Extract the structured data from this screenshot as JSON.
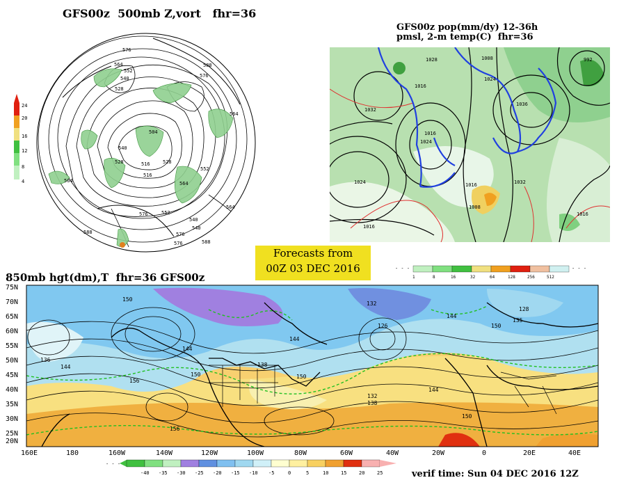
{
  "panels": {
    "z500": {
      "title": "GFS00z  500mb Z,vort   fhr=36",
      "contour_labels": [
        "576",
        "588",
        "564",
        "552",
        "540",
        "528",
        "576",
        "564",
        "504",
        "516",
        "528",
        "540",
        "552",
        "564",
        "576",
        "588",
        "576",
        "552",
        "540",
        "528",
        "564",
        "516",
        "540",
        "564",
        "576",
        "588"
      ],
      "legend": {
        "labels": [
          "24",
          "20",
          "16",
          "12",
          "8",
          "4"
        ],
        "colors": [
          "#e02010",
          "#f0a020",
          "#f0e080",
          "#40c040",
          "#80e080",
          "#c0f0c0"
        ]
      }
    },
    "precip": {
      "title_line1": "GFS00z pop(mm/dy) 12-36h",
      "title_line2": "pmsl, 2-m temp(C)  fhr=36",
      "isobar_labels": [
        "1032",
        "1016",
        "1024",
        "1008",
        "1016",
        "1024",
        "1028",
        "1008",
        "1016",
        "1016",
        "1024",
        "1036",
        "992",
        "1016",
        "1032"
      ],
      "legend": {
        "labels": [
          "1",
          "8",
          "16",
          "32",
          "64",
          "128",
          "256",
          "512"
        ],
        "colors": [
          "#c0f0c0",
          "#80e080",
          "#40c040",
          "#f0e080",
          "#f0a020",
          "#e02010",
          "#f0c0a0",
          "#d0f0f0"
        ]
      }
    },
    "forecast_box": {
      "line1": "Forecasts from",
      "line2": "00Z 03 DEC 2016"
    },
    "h850": {
      "title": "850mb hgt(dm),T  fhr=36 GFS00z",
      "lat_labels": [
        "75N",
        "70N",
        "65N",
        "60N",
        "55N",
        "50N",
        "45N",
        "40N",
        "35N",
        "30N",
        "25N",
        "20N"
      ],
      "lon_labels": [
        "160E",
        "180",
        "160W",
        "140W",
        "120W",
        "100W",
        "80W",
        "60W",
        "40W",
        "20W",
        "0",
        "20E",
        "40E"
      ],
      "height_labels": [
        "150",
        "136",
        "144",
        "156",
        "144",
        "150",
        "138",
        "150",
        "144",
        "132",
        "126",
        "144",
        "150",
        "135",
        "128",
        "132",
        "138",
        "144",
        "150",
        "156"
      ],
      "temp_legend": {
        "labels": [
          "-40",
          "-35",
          "-30",
          "-25",
          "-20",
          "-15",
          "-10",
          "-5",
          "0",
          "5",
          "10",
          "15",
          "20",
          "25"
        ],
        "colors": [
          "#40c040",
          "#80e080",
          "#c0f0c0",
          "#a080e0",
          "#6090e0",
          "#80c0f0",
          "#a0d8f0",
          "#d0f0f8",
          "#ffffd0",
          "#fff0a0",
          "#f8d060",
          "#f0a030",
          "#e03010",
          "#f8b0b0"
        ]
      }
    },
    "verif_time": "verif time: Sun 04 DEC 2016 12Z"
  }
}
